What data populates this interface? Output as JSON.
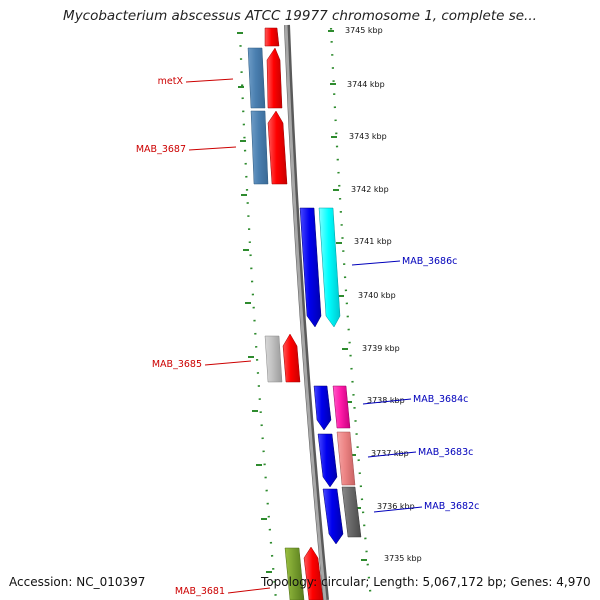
{
  "title": "Mycobacterium abscessus ATCC 19977 chromosome 1, complete se...",
  "footer": {
    "accession": "Accession: NC_010397",
    "stats": "Topology: circular; Length: 5,067,172 bp; Genes: 4,970"
  },
  "colors": {
    "backbone": "#8a8a8a",
    "ticks": "#2e8b2e",
    "forward_label": "#cc0000",
    "reverse_label": "#0000bb"
  },
  "kbp_ticks": [
    "3745 kbp",
    "3744 kbp",
    "3743 kbp",
    "3742 kbp",
    "3741 kbp",
    "3740 kbp",
    "3739 kbp",
    "3738 kbp",
    "3737 kbp",
    "3736 kbp",
    "3735 kbp"
  ],
  "forward_labels": [
    "metX",
    "MAB_3687",
    "MAB_3685",
    "MAB_3681"
  ],
  "reverse_labels": [
    "MAB_3686c",
    "MAB_3684c",
    "MAB_3683c",
    "MAB_3682c"
  ]
}
